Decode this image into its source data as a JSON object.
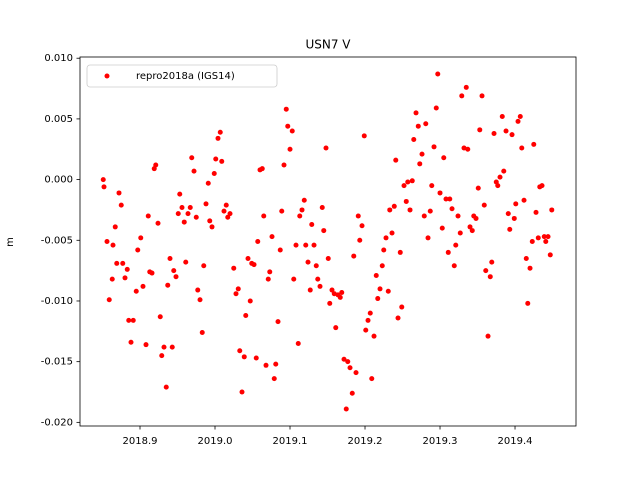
{
  "chart_data": {
    "type": "scatter",
    "title": "USN7 V",
    "y_label": "m",
    "grid": false,
    "legend_position": "upper left",
    "xlim": [
      2018.82,
      2019.4813
    ],
    "ylim": [
      -0.0203,
      0.0101
    ],
    "xticks": [
      2018.9,
      {
        "value": 2019.0,
        "label": "2019.0"
      },
      2019.1,
      2019.2,
      2019.3,
      2019.4
    ],
    "yticks": [
      {
        "value": -0.02,
        "label": "-0.020"
      },
      {
        "value": -0.015,
        "label": "-0.015"
      },
      {
        "value": -0.01,
        "label": "-0.010"
      },
      {
        "value": -0.005,
        "label": "-0.005"
      },
      {
        "value": 0,
        "label": "0.000"
      },
      {
        "value": 0.005,
        "label": "0.005"
      },
      {
        "value": 0.01,
        "label": "0.010"
      }
    ],
    "x": [
      2018.851,
      2018.852,
      2018.856,
      2018.859,
      2018.863,
      2018.864,
      2018.867,
      2018.869,
      2018.872,
      2018.875,
      2018.877,
      2018.88,
      2018.883,
      2018.885,
      2018.888,
      2018.891,
      2018.895,
      2018.897,
      2018.901,
      2018.904,
      2018.908,
      2018.911,
      2018.913,
      2018.916,
      2018.919,
      2018.921,
      2018.924,
      2018.927,
      2018.929,
      2018.932,
      2018.935,
      2018.937,
      2018.94,
      2018.943,
      2018.945,
      2018.948,
      2018.951,
      2018.953,
      2018.956,
      2018.959,
      2018.961,
      2018.964,
      2018.967,
      2018.969,
      2018.972,
      2018.975,
      2018.977,
      2018.98,
      2018.983,
      2018.985,
      2018.988,
      2018.991,
      2018.993,
      2018.996,
      2018.999,
      2019.001,
      2019.004,
      2019.007,
      2019.009,
      2019.012,
      2019.015,
      2019.017,
      2019.02,
      2019.025,
      2019.028,
      2019.031,
      2019.033,
      2019.036,
      2019.039,
      2019.041,
      2019.044,
      2019.047,
      2019.049,
      2019.052,
      2019.055,
      2019.057,
      2019.06,
      2019.063,
      2019.065,
      2019.068,
      2019.071,
      2019.073,
      2019.076,
      2019.079,
      2019.081,
      2019.084,
      2019.087,
      2019.089,
      2019.092,
      2019.095,
      2019.097,
      2019.1,
      2019.103,
      2019.105,
      2019.108,
      2019.111,
      2019.113,
      2019.116,
      2019.119,
      2019.121,
      2019.124,
      2019.127,
      2019.129,
      2019.132,
      2019.135,
      2019.137,
      2019.14,
      2019.143,
      2019.145,
      2019.148,
      2019.151,
      2019.153,
      2019.156,
      2019.159,
      2019.161,
      2019.164,
      2019.167,
      2019.169,
      2019.172,
      2019.175,
      2019.177,
      2019.18,
      2019.183,
      2019.185,
      2019.188,
      2019.191,
      2019.193,
      2019.196,
      2019.199,
      2019.201,
      2019.204,
      2019.207,
      2019.209,
      2019.212,
      2019.215,
      2019.217,
      2019.22,
      2019.223,
      2019.225,
      2019.228,
      2019.231,
      2019.233,
      2019.236,
      2019.239,
      2019.241,
      2019.244,
      2019.247,
      2019.249,
      2019.252,
      2019.255,
      2019.257,
      2019.26,
      2019.263,
      2019.265,
      2019.268,
      2019.271,
      2019.273,
      2019.276,
      2019.279,
      2019.281,
      2019.284,
      2019.287,
      2019.289,
      2019.292,
      2019.295,
      2019.297,
      2019.3,
      2019.303,
      2019.305,
      2019.308,
      2019.311,
      2019.313,
      2019.316,
      2019.319,
      2019.321,
      2019.324,
      2019.327,
      2019.329,
      2019.332,
      2019.335,
      2019.337,
      2019.34,
      2019.343,
      2019.345,
      2019.348,
      2019.351,
      2019.353,
      2019.356,
      2019.359,
      2019.361,
      2019.364,
      2019.367,
      2019.369,
      2019.372,
      2019.375,
      2019.377,
      2019.38,
      2019.383,
      2019.385,
      2019.388,
      2019.391,
      2019.393,
      2019.396,
      2019.399,
      2019.401,
      2019.404,
      2019.407,
      2019.409,
      2019.412,
      2019.415,
      2019.417,
      2019.42,
      2019.423,
      2019.425,
      2019.428,
      2019.431,
      2019.433,
      2019.436,
      2019.439,
      2019.441,
      2019.444,
      2019.447,
      2019.449
    ],
    "series": [
      {
        "name": "repro2018a (IGS14)",
        "color": "#ff0000",
        "values": [
          0.0,
          -0.0006,
          -0.0051,
          -0.0099,
          -0.0082,
          -0.0054,
          -0.0039,
          -0.0069,
          -0.0011,
          -0.0021,
          -0.0069,
          -0.0081,
          -0.0074,
          -0.0116,
          -0.0134,
          -0.0116,
          -0.0092,
          -0.0058,
          -0.0048,
          -0.0088,
          -0.0136,
          -0.003,
          -0.0076,
          -0.0077,
          0.0009,
          0.0012,
          -0.0036,
          -0.0113,
          -0.0145,
          -0.0138,
          -0.0171,
          -0.0087,
          -0.0065,
          -0.0138,
          -0.0075,
          -0.008,
          -0.0028,
          -0.0012,
          -0.0023,
          -0.0035,
          -0.0068,
          -0.0028,
          -0.0023,
          0.0018,
          0.0007,
          -0.0031,
          -0.0091,
          -0.0099,
          -0.0126,
          -0.0071,
          -0.002,
          -0.0003,
          -0.0034,
          -0.0039,
          0.0005,
          0.0017,
          0.0034,
          0.0039,
          0.0015,
          -0.0026,
          -0.0021,
          -0.0031,
          -0.0028,
          -0.0073,
          -0.0094,
          -0.009,
          -0.0141,
          -0.0175,
          -0.0146,
          -0.0112,
          -0.0065,
          -0.01,
          -0.0069,
          -0.007,
          -0.0147,
          -0.0051,
          0.0008,
          0.0009,
          -0.003,
          -0.0153,
          -0.0082,
          -0.0076,
          -0.0047,
          -0.0164,
          -0.0152,
          -0.0117,
          -0.0058,
          -0.0026,
          0.0012,
          0.0058,
          0.0044,
          0.0025,
          0.004,
          -0.0082,
          -0.0054,
          -0.0135,
          -0.003,
          -0.0025,
          -0.0017,
          -0.0054,
          -0.0068,
          -0.0091,
          -0.0037,
          -0.0054,
          -0.0071,
          -0.0082,
          -0.0088,
          -0.0023,
          -0.0042,
          0.0026,
          -0.0065,
          -0.0102,
          -0.0091,
          -0.0094,
          -0.0122,
          -0.0095,
          -0.0097,
          -0.0093,
          -0.0148,
          -0.0189,
          -0.015,
          -0.0155,
          -0.0176,
          -0.0063,
          -0.0159,
          -0.003,
          -0.005,
          -0.0038,
          0.0036,
          -0.0124,
          -0.0116,
          -0.011,
          -0.0164,
          -0.0129,
          -0.0079,
          -0.0098,
          -0.009,
          -0.0071,
          -0.0058,
          -0.0048,
          -0.0092,
          -0.0025,
          -0.0044,
          -0.0022,
          0.0016,
          -0.0114,
          -0.006,
          -0.0105,
          -0.0005,
          -0.0018,
          -0.0002,
          -0.0025,
          -0.0001,
          0.0033,
          0.0055,
          0.0044,
          0.0013,
          0.0021,
          -0.003,
          0.0046,
          -0.0048,
          -0.0026,
          -0.0005,
          0.0027,
          0.0059,
          0.0087,
          -0.0011,
          -0.004,
          0.0018,
          -0.0016,
          -0.006,
          -0.0016,
          -0.0024,
          -0.0071,
          -0.0054,
          -0.003,
          -0.0044,
          0.0069,
          0.0026,
          0.0076,
          0.0025,
          -0.0039,
          -0.0042,
          -0.003,
          -0.0032,
          -0.0007,
          0.0041,
          0.0069,
          -0.0021,
          -0.0075,
          -0.0129,
          -0.008,
          -0.0068,
          0.0038,
          -0.0002,
          -0.0005,
          0.0002,
          0.0052,
          0.0007,
          0.004,
          -0.0028,
          -0.0041,
          0.0037,
          -0.0032,
          -0.002,
          0.0048,
          0.0052,
          0.0026,
          -0.0017,
          -0.0065,
          -0.0102,
          -0.0073,
          -0.0051,
          0.0029,
          -0.0027,
          -0.0048,
          -0.0006,
          -0.0005,
          -0.0047,
          -0.0051,
          -0.0047,
          -0.0062,
          -0.0025
        ]
      }
    ]
  }
}
